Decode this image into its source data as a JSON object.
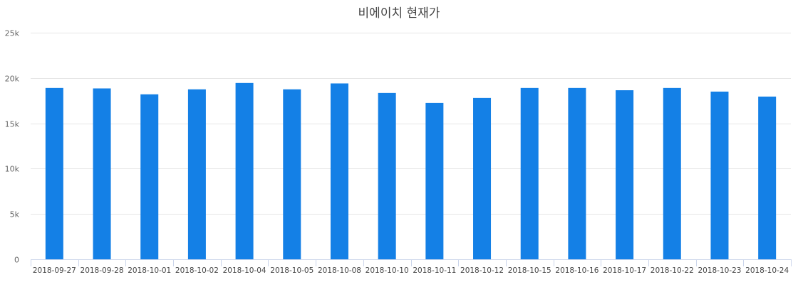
{
  "chart_data": {
    "type": "bar",
    "title": "비에이치 현재가",
    "categories": [
      "2018-09-27",
      "2018-09-28",
      "2018-10-01",
      "2018-10-02",
      "2018-10-04",
      "2018-10-05",
      "2018-10-08",
      "2018-10-10",
      "2018-10-11",
      "2018-10-12",
      "2018-10-15",
      "2018-10-16",
      "2018-10-17",
      "2018-10-22",
      "2018-10-23",
      "2018-10-24"
    ],
    "values": [
      18900,
      18850,
      18200,
      18750,
      19450,
      18750,
      19400,
      18350,
      17250,
      17800,
      18900,
      18900,
      18650,
      18900,
      18500,
      17950
    ],
    "ylim": [
      0,
      25000
    ],
    "yticks": [
      0,
      5000,
      10000,
      15000,
      20000,
      25000
    ],
    "ytick_labels": [
      "0",
      "5k",
      "10k",
      "15k",
      "20k",
      "25k"
    ],
    "grid": true,
    "bar_color": "#1480e6",
    "grid_color": "#e6e6e6",
    "axis_color": "#ccd6eb"
  }
}
